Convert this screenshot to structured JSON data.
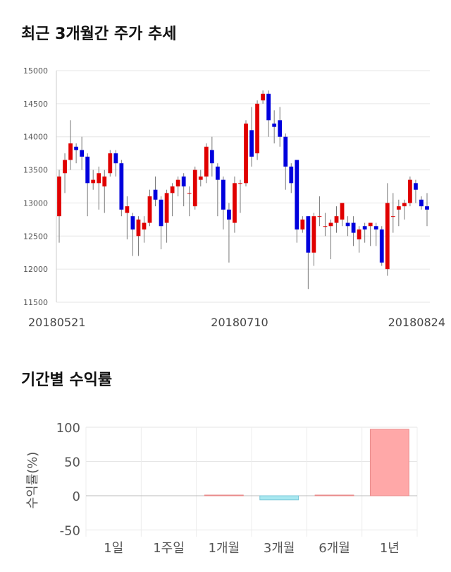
{
  "sections": {
    "price_title": "최근 3개월간 주가 추세",
    "return_title": "기간별 수익률"
  },
  "chart_data": [
    {
      "type": "candlestick",
      "ylim": [
        11500,
        15000
      ],
      "y_ticks": [
        "15000",
        "14500",
        "14000",
        "13500",
        "13000",
        "12500",
        "12000",
        "11500"
      ],
      "y_tick_values": [
        15000,
        14500,
        14000,
        13500,
        13000,
        12500,
        12000,
        11500
      ],
      "x_labels": [
        "20180521",
        "20180710",
        "20180824"
      ],
      "grid": true,
      "colors": {
        "up": "#e00000",
        "down": "#0000dd",
        "wick": "#777777"
      },
      "candles": [
        [
          12800,
          13400,
          12400,
          13500
        ],
        [
          13450,
          13650,
          13150,
          13750
        ],
        [
          13650,
          13900,
          13500,
          14250
        ],
        [
          13850,
          13800,
          13600,
          13900
        ],
        [
          13800,
          13700,
          13500,
          14000
        ],
        [
          13700,
          13300,
          12800,
          13750
        ],
        [
          13300,
          13350,
          13200,
          13500
        ],
        [
          13300,
          13450,
          12900,
          13550
        ],
        [
          13250,
          13400,
          12850,
          13500
        ],
        [
          13450,
          13750,
          13400,
          13800
        ],
        [
          13750,
          13600,
          13400,
          13800
        ],
        [
          13600,
          12900,
          12800,
          13650
        ],
        [
          12850,
          12950,
          12450,
          13100
        ],
        [
          12800,
          12600,
          12200,
          12850
        ],
        [
          12500,
          12750,
          12200,
          12800
        ],
        [
          12600,
          12700,
          12400,
          12800
        ],
        [
          12700,
          13100,
          12650,
          13200
        ],
        [
          13200,
          13050,
          12950,
          13400
        ],
        [
          13050,
          12650,
          12300,
          13100
        ],
        [
          12700,
          13150,
          12400,
          13200
        ],
        [
          13150,
          13250,
          12800,
          13300
        ],
        [
          13250,
          13350,
          13100,
          13400
        ],
        [
          13400,
          13250,
          12950,
          13450
        ],
        [
          13150,
          13150,
          12800,
          13250
        ],
        [
          12950,
          13500,
          12900,
          13550
        ],
        [
          13350,
          13400,
          13250,
          13500
        ],
        [
          13400,
          13850,
          13300,
          13900
        ],
        [
          13800,
          13600,
          13400,
          14000
        ],
        [
          13550,
          13350,
          12800,
          13600
        ],
        [
          13350,
          12900,
          12600,
          13400
        ],
        [
          12900,
          12750,
          12100,
          13000
        ],
        [
          12700,
          13300,
          12550,
          13400
        ],
        [
          13300,
          13300,
          12850,
          13350
        ],
        [
          13300,
          14200,
          13250,
          14250
        ],
        [
          14100,
          13700,
          13550,
          14450
        ],
        [
          13750,
          14500,
          13650,
          14550
        ],
        [
          14550,
          14650,
          14500,
          14700
        ],
        [
          14650,
          14250,
          14000,
          14700
        ],
        [
          14200,
          14150,
          13900,
          14400
        ],
        [
          14250,
          14000,
          13850,
          14450
        ],
        [
          14000,
          13550,
          13200,
          14050
        ],
        [
          13550,
          13300,
          13150,
          13600
        ],
        [
          13650,
          12600,
          12400,
          13650
        ],
        [
          12600,
          12750,
          12550,
          12800
        ],
        [
          12800,
          12250,
          11700,
          12800
        ],
        [
          12250,
          12800,
          12050,
          12850
        ],
        [
          12800,
          12800,
          12650,
          13100
        ],
        [
          12650,
          12650,
          12500,
          12850
        ],
        [
          12650,
          12700,
          12150,
          12750
        ],
        [
          12700,
          12800,
          12550,
          12950
        ],
        [
          12750,
          13000,
          12650,
          13000
        ],
        [
          12700,
          12650,
          12500,
          12800
        ],
        [
          12700,
          12550,
          12350,
          12800
        ],
        [
          12450,
          12600,
          12250,
          12650
        ],
        [
          12650,
          12600,
          12400,
          12700
        ],
        [
          12650,
          12700,
          12350,
          12700
        ],
        [
          12650,
          12600,
          12350,
          12700
        ],
        [
          12600,
          12100,
          12050,
          12650
        ],
        [
          12000,
          13000,
          11900,
          13300
        ],
        [
          12800,
          12800,
          12550,
          13150
        ],
        [
          12900,
          12950,
          12650,
          13050
        ],
        [
          12950,
          13000,
          12750,
          13050
        ],
        [
          13000,
          13350,
          12950,
          13400
        ],
        [
          13300,
          13200,
          13000,
          13350
        ],
        [
          13050,
          12950,
          12900,
          13100
        ],
        [
          12950,
          12900,
          12650,
          13150
        ]
      ]
    },
    {
      "type": "bar",
      "categories": [
        "1일",
        "1주일",
        "1개월",
        "3개월",
        "6개월",
        "1년"
      ],
      "values": [
        0,
        0,
        1,
        -6,
        1,
        97
      ],
      "ylim": [
        -55,
        100
      ],
      "y_ticks": [
        "100",
        "50",
        "0",
        "-50"
      ],
      "y_tick_values": [
        100,
        50,
        0,
        -50
      ],
      "ylabel": "수익률(%)",
      "grid": true,
      "colors": {
        "positive": "#ffa8a8",
        "positive_edge": "#e88a8a",
        "negative": "#a8e8f0",
        "negative_edge": "#7cc8d8"
      }
    }
  ]
}
